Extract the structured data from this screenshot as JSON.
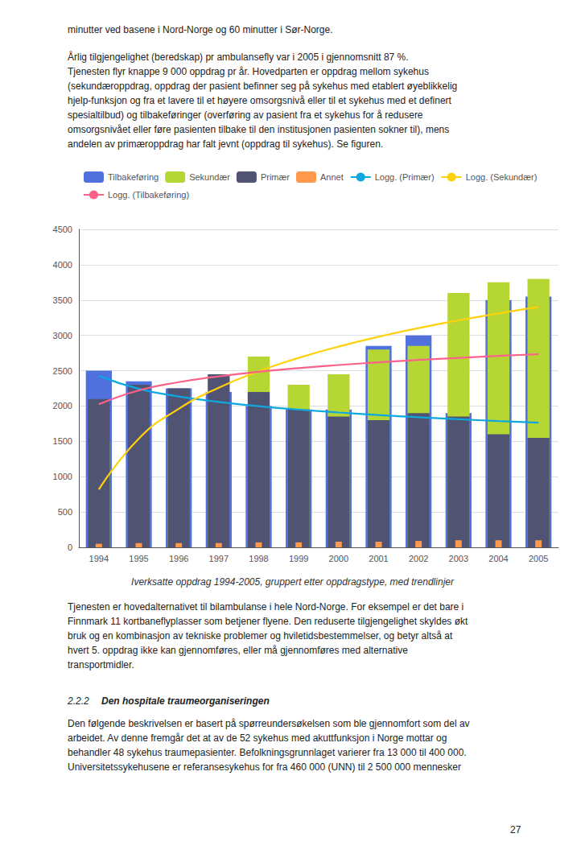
{
  "chart_data": {
    "type": "bar",
    "title": "Iverksatte oppdrag 1994-2005, gruppert etter oppdragstype, med trendlinjer",
    "annotations": [
      "minutter ved basene i Nord-Norge og 60 minutter i Sør-Norge.",
      "Årlig tilgjengelighet (beredskap) pr ambulansefly var i 2005 i gjennomsnitt 87 %.\nTjenesten flyr knappe 9 000 oppdrag pr år. Hovedparten er oppdrag mellom sykehus\n(sekundæroppdrag, oppdrag der pasient befinner seg på sykehus med etablert øyeblikkelig\nhjelp-funksjon og fra et lavere til et høyere omsorgsnivå eller til et sykehus med et definert\nspesialtilbud) og tilbakeføringer (overføring av pasient fra et sykehus for å redusere\nomsorgsnivået eller føre pasienten tilbake til den institusjonen pasienten sokner til), mens\nandelen av primæroppdrag har falt jevnt (oppdrag til sykehus). Se figuren.",
      "Tjenesten er hovedalternativet til bilambulanse i hele Nord-Norge. For eksempel er det bare i\nFinnmark 11 kortbaneflyplasser som betjener flyene. Den reduserte tilgjengelighet skyldes økt\nbruk og en kombinasjon av tekniske problemer og hviletidsbestemmelser, og betyr altså at\nhvert 5. oppdrag ikke kan gjennomføres, eller må gjennomføres med alternative\ntransportmidler.",
      "2.2.2",
      "Den hospitale traumeorganiseringen",
      "Den følgende beskrivelsen er basert på spørreundersøkelsen som ble gjennomfort som del av\narbeidet. Av denne fremgår det at av de 52 sykehus med akuttfunksjon i Norge mottar og\nbehandler 48 sykehus traumepasienter. Befolkningsgrunnlaget varierer fra 13 000 til 400 000.\nUniversitetssykehusene er referansesykehus for fra 460 000 (UNN) til 2 500 000 mennesker",
      "27"
    ],
    "categories": [
      "1994",
      "1995",
      "1996",
      "1997",
      "1998",
      "1999",
      "2000",
      "2001",
      "2002",
      "2003",
      "2004",
      "2005"
    ],
    "series": [
      {
        "name": "Tilbakeføring",
        "type": "bar",
        "values": [
          2500,
          2350,
          2250,
          2200,
          2000,
          1950,
          1950,
          2850,
          3000,
          1900,
          3500,
          3550
        ]
      },
      {
        "name": "Sekundær",
        "type": "bar",
        "values": [
          1500,
          1100,
          1750,
          2000,
          2700,
          2300,
          2450,
          2800,
          2850,
          3600,
          3750,
          3800
        ]
      },
      {
        "name": "Primær",
        "type": "bar",
        "values": [
          2100,
          2300,
          2250,
          2450,
          2200,
          1950,
          1850,
          1800,
          1900,
          1850,
          1600,
          1550
        ]
      },
      {
        "name": "Annet",
        "type": "bar",
        "values": [
          50,
          60,
          60,
          60,
          70,
          70,
          80,
          80,
          90,
          100,
          100,
          100
        ]
      },
      {
        "name": "Logg. (Primær)",
        "type": "line",
        "values": [
          2428.18,
          2243.05,
          2134.76,
          2057.93,
          1998.33,
          1949.64,
          1908.47,
          1872.8,
          1841.34,
          1813.21,
          1787.75,
          1764.51
        ]
      },
      {
        "name": "Logg. (Sekundær)",
        "type": "line",
        "values": [
          818.49,
          1539.07,
          1960.58,
          2259.66,
          2491.61,
          2681.15,
          2841.4,
          2980.22,
          3102.66,
          3212.19,
          3311.27,
          3401.73
        ]
      },
      {
        "name": "Logg. (Tilbakeføring)",
        "type": "line",
        "values": [
          2023.72,
          2221.93,
          2337.87,
          2420.13,
          2483.94,
          2536.07,
          2580.15,
          2618.34,
          2652.02,
          2682.14,
          2709.4,
          2734.28
        ]
      }
    ],
    "ylim": [
      0,
      4500
    ],
    "yticks": [
      0,
      500,
      1000,
      1500,
      2000,
      2500,
      3000,
      3500,
      4000,
      4500
    ],
    "grid": true,
    "legend": "upper left"
  }
}
